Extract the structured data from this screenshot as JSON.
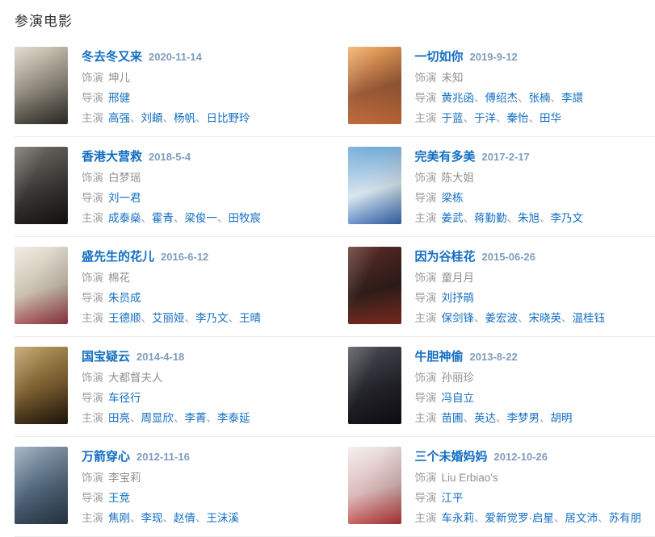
{
  "page": {
    "title": "参演电影"
  },
  "labels": {
    "role": "饰演",
    "director": "导演",
    "starring": "主演",
    "separator": "、"
  },
  "colors": {
    "link_blue": "#136ec2",
    "date_blue": "#7f9dbe",
    "label_gray": "#9c9c9c",
    "value_gray": "#8f8f8f",
    "divider_gray": "#ebebeb",
    "heading_dark": "#333333"
  },
  "movies": [
    {
      "title": "冬去冬又来",
      "date": "2020-11-14",
      "role": "坤儿",
      "directors": [
        "邢健"
      ],
      "stars": [
        "高强",
        "刘頔",
        "杨帆",
        "日比野玲"
      ],
      "poster_colors": [
        "#d8d2c2",
        "#8a8578",
        "#33312b"
      ]
    },
    {
      "title": "一切如你",
      "date": "2019-9-12",
      "role": "未知",
      "directors": [
        "黄兆函",
        "傅绍杰",
        "张楠",
        "李譞"
      ],
      "stars": [
        "于蓝",
        "于洋",
        "秦怡",
        "田华"
      ],
      "poster_colors": [
        "#f2a85c",
        "#9a5a38",
        "#d9763f"
      ]
    },
    {
      "title": "香港大营救",
      "date": "2018-5-4",
      "role": "白梦瑶",
      "directors": [
        "刘一君"
      ],
      "stars": [
        "成泰燊",
        "霍青",
        "梁俊一",
        "田牧宸"
      ],
      "poster_colors": [
        "#6e6a66",
        "#3a3835",
        "#171512"
      ]
    },
    {
      "title": "完美有多美",
      "date": "2017-2-17",
      "role": "陈大姐",
      "directors": [
        "梁栋"
      ],
      "stars": [
        "姜武",
        "蒋勤勤",
        "朱旭",
        "李乃文"
      ],
      "poster_colors": [
        "#5c9fd4",
        "#d9e6ee",
        "#3a6fbd"
      ]
    },
    {
      "title": "盛先生的花儿",
      "date": "2016-6-12",
      "role": "棉花",
      "directors": [
        "朱员成"
      ],
      "stars": [
        "王德顺",
        "艾丽娅",
        "李乃文",
        "王晴"
      ],
      "poster_colors": [
        "#ece5da",
        "#c8bfae",
        "#a03c48"
      ]
    },
    {
      "title": "因为谷桂花",
      "date": "2015-06-26",
      "role": "童月月",
      "directors": [
        "刘抒鹃"
      ],
      "stars": [
        "保剑锋",
        "姜宏波",
        "宋晓英",
        "温桂钰"
      ],
      "poster_colors": [
        "#5a2a24",
        "#2e1d1a",
        "#8c2f24"
      ]
    },
    {
      "title": "国宝疑云",
      "date": "2014-4-18",
      "role": "大都督夫人",
      "directors": [
        "车径行"
      ],
      "stars": [
        "田亮",
        "周显欣",
        "李菁",
        "李泰延"
      ],
      "poster_colors": [
        "#b89a5e",
        "#7a5c2e",
        "#241a0e"
      ]
    },
    {
      "title": "牛胆神偷",
      "date": "2013-8-22",
      "role": "孙丽珍",
      "directors": [
        "冯自立"
      ],
      "stars": [
        "苗圃",
        "英达",
        "李梦男",
        "胡明"
      ],
      "poster_colors": [
        "#4a4a52",
        "#23232a",
        "#101014"
      ]
    },
    {
      "title": "万箭穿心",
      "date": "2012-11-16",
      "role": "李宝莉",
      "directors": [
        "王竞"
      ],
      "stars": [
        "焦刚",
        "李现",
        "赵倩",
        "王沫溪"
      ],
      "poster_colors": [
        "#8fa3b5",
        "#51667a",
        "#2c3b4d"
      ]
    },
    {
      "title": "三个未婚妈妈",
      "date": "2012-10-26",
      "role": "Liu Erbiao's",
      "directors": [
        "江平"
      ],
      "stars": [
        "车永莉",
        "爱新觉罗·启星",
        "居文沛",
        "苏有朋"
      ],
      "poster_colors": [
        "#f2e9e9",
        "#d8b8b8",
        "#c23a3a"
      ]
    }
  ]
}
